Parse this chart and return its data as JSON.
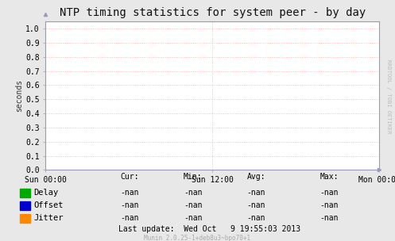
{
  "title": "NTP timing statistics for system peer - by day",
  "ylabel": "seconds",
  "bg_color": "#e8e8e8",
  "plot_bg_color": "#ffffff",
  "grid_color": "#ffaaaa",
  "border_color": "#9999bb",
  "ylim": [
    0.0,
    1.05
  ],
  "yticks": [
    0.0,
    0.1,
    0.2,
    0.3,
    0.4,
    0.5,
    0.6,
    0.7,
    0.8,
    0.9,
    1.0
  ],
  "xtick_labels": [
    "Sun 00:00",
    "Sun 12:00",
    "Mon 00:00"
  ],
  "xtick_positions": [
    0.0,
    0.5,
    1.0
  ],
  "legend_items": [
    {
      "label": "Delay",
      "color": "#00aa00"
    },
    {
      "label": "Offset",
      "color": "#0000cc"
    },
    {
      "label": "Jitter",
      "color": "#ff8800"
    }
  ],
  "stat_headers": [
    "Cur:",
    "Min:",
    "Avg:",
    "Max:"
  ],
  "stat_values": [
    "-nan",
    "-nan",
    "-nan",
    "-nan"
  ],
  "last_update": "Last update:  Wed Oct   9 19:55:03 2013",
  "munin_version": "Munin 2.0.25-1+deb8u3~bpo70+1",
  "watermark": "RRDTOOL / TOBI OETIKER",
  "title_fontsize": 10,
  "axis_label_fontsize": 7,
  "tick_fontsize": 7,
  "legend_fontsize": 7.5,
  "stats_fontsize": 7,
  "watermark_fontsize": 5,
  "munin_fontsize": 5.5
}
